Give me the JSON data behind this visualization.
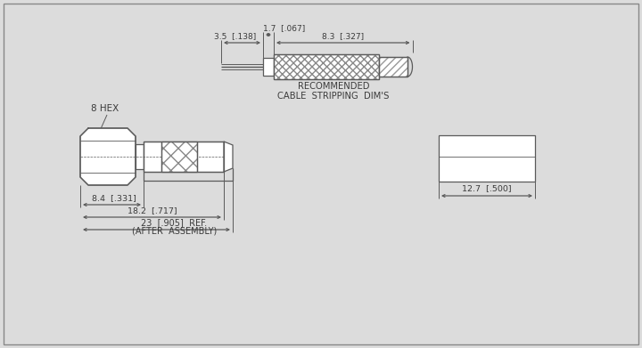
{
  "bg_color": "#dcdcdc",
  "line_color": "#5a5a5a",
  "text_color": "#3a3a3a",
  "dim_1_7": "1.7  [.067]",
  "dim_3_5": "3.5  [.138]",
  "dim_8_3": "8.3  [.327]",
  "dim_8_4": "8.4  [.331]",
  "dim_18_2": "18.2  [.717]",
  "dim_12_7": "12.7  [.500]",
  "dim_23": "23  [.905]  REF.",
  "dim_23b": "(AFTER  ASSEMBLY)",
  "rec_label1": "RECOMMENDED",
  "rec_label2": "CABLE  STRIPPING  DIM'S",
  "hex_label": "8 HEX"
}
